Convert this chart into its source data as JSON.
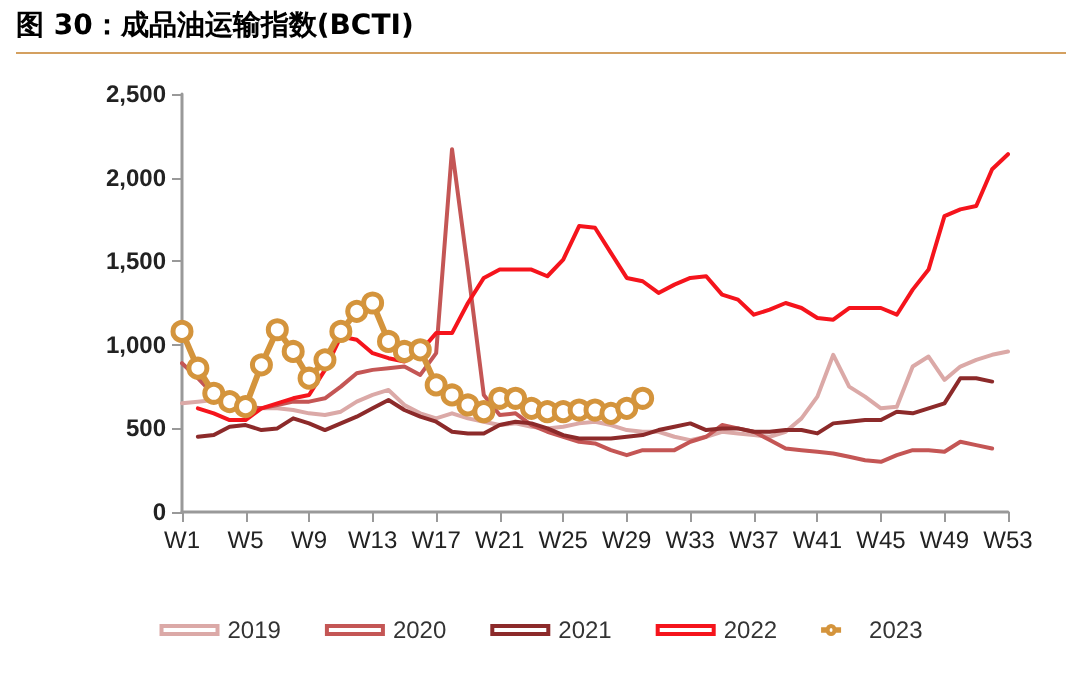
{
  "chart_data": {
    "type": "line",
    "title": "图 30：成品油运输指数(BCTI)",
    "categories": [
      "W1",
      null,
      null,
      null,
      "W5",
      null,
      null,
      null,
      "W9",
      null,
      null,
      null,
      "W13",
      null,
      null,
      null,
      "W17",
      null,
      null,
      null,
      "W21",
      null,
      null,
      null,
      "W25",
      null,
      null,
      null,
      "W29",
      null,
      null,
      null,
      "W33",
      null,
      null,
      null,
      "W37",
      null,
      null,
      null,
      "W41",
      null,
      null,
      null,
      "W45",
      null,
      null,
      null,
      "W49",
      null,
      null,
      null,
      "W53"
    ],
    "ylim": [
      0,
      2500
    ],
    "yticks": [
      {
        "value": 0,
        "label": "0"
      },
      {
        "value": 500,
        "label": "500"
      },
      {
        "value": 1000,
        "label": "1,000"
      },
      {
        "value": 1500,
        "label": "1,500"
      },
      {
        "value": 2000,
        "label": "2,000"
      },
      {
        "value": 2500,
        "label": "2,500"
      }
    ],
    "grid": false,
    "legend": "bottom",
    "marker": "none",
    "line_style": "solid",
    "series": [
      {
        "name": "2019",
        "color": "#dba9a7",
        "values": [
          650,
          660,
          670,
          650,
          620,
          620,
          620,
          610,
          590,
          580,
          600,
          660,
          700,
          730,
          640,
          590,
          560,
          590,
          560,
          540,
          520,
          530,
          510,
          500,
          510,
          530,
          540,
          520,
          490,
          480,
          480,
          450,
          430,
          450,
          480,
          470,
          460,
          450,
          480,
          560,
          690,
          940,
          750,
          690,
          620,
          630,
          870,
          930,
          790,
          870,
          910,
          940,
          960
        ]
      },
      {
        "name": "2020",
        "color": "#c45655",
        "values": [
          890,
          800,
          700,
          650,
          630,
          620,
          640,
          660,
          660,
          680,
          750,
          830,
          850,
          860,
          870,
          820,
          950,
          2170,
          1450,
          700,
          580,
          590,
          520,
          480,
          450,
          420,
          410,
          370,
          340,
          370,
          370,
          370,
          420,
          450,
          520,
          500,
          480,
          430,
          380,
          370,
          360,
          350,
          330,
          310,
          300,
          340,
          370,
          370,
          360,
          420,
          400,
          380,
          null
        ]
      },
      {
        "name": "2021",
        "color": "#8c2a2a",
        "values": [
          null,
          450,
          460,
          510,
          520,
          490,
          500,
          560,
          530,
          490,
          530,
          570,
          620,
          670,
          610,
          570,
          540,
          480,
          470,
          470,
          520,
          540,
          530,
          500,
          460,
          440,
          440,
          440,
          450,
          460,
          490,
          510,
          530,
          490,
          500,
          500,
          480,
          480,
          490,
          490,
          470,
          530,
          540,
          550,
          550,
          600,
          590,
          620,
          650,
          800,
          800,
          780,
          null
        ]
      },
      {
        "name": "2022",
        "color": "#f5141c",
        "values": [
          null,
          620,
          590,
          550,
          550,
          620,
          650,
          680,
          700,
          850,
          1050,
          1030,
          950,
          920,
          900,
          960,
          1070,
          1070,
          1250,
          1400,
          1450,
          1450,
          1450,
          1410,
          1510,
          1710,
          1700,
          1550,
          1400,
          1380,
          1310,
          1360,
          1400,
          1410,
          1300,
          1270,
          1180,
          1210,
          1250,
          1220,
          1160,
          1150,
          1220,
          1220,
          1220,
          1180,
          1330,
          1450,
          1770,
          1810,
          1830,
          2050,
          2140
        ]
      },
      {
        "name": "2023",
        "color": "#d4943c",
        "marker": "circle",
        "values": [
          1080,
          860,
          710,
          660,
          630,
          880,
          1090,
          960,
          800,
          910,
          1080,
          1200,
          1250,
          1020,
          960,
          970,
          760,
          700,
          640,
          600,
          680,
          680,
          620,
          600,
          600,
          610,
          610,
          590,
          620,
          680,
          null,
          null,
          null,
          null,
          null,
          null,
          null,
          null,
          null,
          null,
          null,
          null,
          null,
          null,
          null,
          null,
          null,
          null,
          null,
          null,
          null,
          null,
          null
        ]
      }
    ]
  }
}
